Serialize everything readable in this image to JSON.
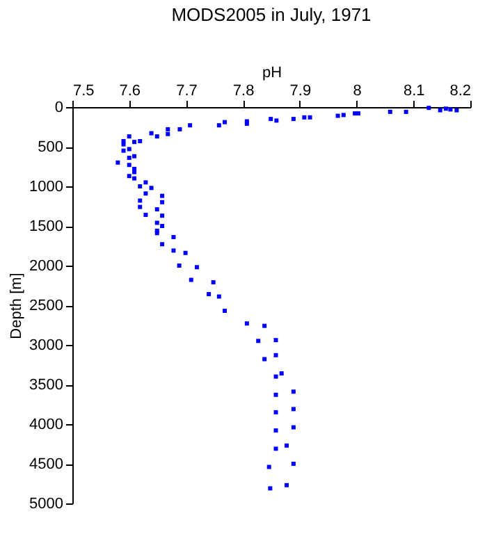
{
  "chart_data": {
    "type": "scatter",
    "title": "MODS2005 in July, 1971",
    "xlabel": "pH",
    "ylabel": "Depth [m]",
    "x": [
      8.127,
      8.147,
      8.157,
      8.165,
      8.176,
      8.087,
      8.059,
      8.003,
      7.997,
      7.977,
      7.967,
      7.918,
      7.908,
      7.889,
      7.859,
      7.849,
      7.807,
      7.807,
      7.768,
      7.758,
      7.707,
      7.689,
      7.668,
      7.668,
      7.649,
      7.639,
      7.619,
      7.6,
      7.609,
      7.59,
      7.59,
      7.59,
      7.6,
      7.609,
      7.6,
      7.58,
      7.6,
      7.609,
      7.609,
      7.6,
      7.609,
      7.629,
      7.619,
      7.639,
      7.629,
      7.658,
      7.619,
      7.658,
      7.649,
      7.619,
      7.629,
      7.658,
      7.658,
      7.649,
      7.649,
      7.649,
      7.678,
      7.658,
      7.678,
      7.699,
      7.688,
      7.719,
      7.709,
      7.748,
      7.74,
      7.758,
      7.768,
      7.807,
      7.838,
      7.827,
      7.858,
      7.858,
      7.838,
      7.868,
      7.858,
      7.889,
      7.858,
      7.858,
      7.889,
      7.858,
      7.889,
      7.877,
      7.858,
      7.846,
      7.889,
      7.877,
      7.848
    ],
    "values": [
      10,
      40,
      20,
      30,
      40,
      60,
      60,
      80,
      80,
      100,
      110,
      130,
      130,
      150,
      170,
      150,
      180,
      210,
      190,
      230,
      230,
      280,
      280,
      340,
      370,
      330,
      430,
      370,
      440,
      430,
      470,
      550,
      530,
      620,
      640,
      700,
      730,
      780,
      820,
      870,
      900,
      950,
      1000,
      1020,
      1090,
      1120,
      1180,
      1200,
      1290,
      1260,
      1360,
      1370,
      1500,
      1560,
      1460,
      1590,
      1640,
      1730,
      1810,
      1840,
      2000,
      2020,
      2180,
      2210,
      2360,
      2390,
      2570,
      2730,
      2760,
      2950,
      2940,
      3130,
      3180,
      3360,
      3400,
      3590,
      3630,
      3850,
      3810,
      4080,
      4040,
      4270,
      4310,
      4540,
      4500,
      4770,
      4810
    ],
    "color": "#0000ff",
    "marker": "square",
    "xlim": [
      7.5,
      8.2
    ],
    "xticks": [
      7.5,
      7.6,
      7.7,
      7.8,
      7.9,
      8,
      8.1,
      8.2
    ],
    "ylim": [
      5000,
      0
    ],
    "yticks": [
      0,
      500,
      1000,
      1500,
      2000,
      2500,
      3000,
      3500,
      4000,
      4500,
      5000
    ],
    "grid": false
  }
}
